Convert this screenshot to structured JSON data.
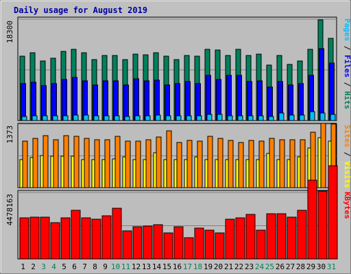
{
  "title": "Daily usage for August 2019",
  "colors": {
    "background": "#c0c0c0",
    "panel": "#bdbdbd",
    "grid": "#808080",
    "hits": "#00805c",
    "files": "#0000ff",
    "pages": "#00c0ff",
    "visits": "#ffff00",
    "sites": "#ff8000",
    "kbytes": "#ff0000",
    "weekend_label": "#00805c",
    "weekday_label": "#000000",
    "title": "#0000a0"
  },
  "chart_data": [
    {
      "type": "bar",
      "panel": "top",
      "ytick": "18300",
      "ymax": 18300,
      "categories": [
        "1",
        "2",
        "3",
        "4",
        "5",
        "6",
        "7",
        "8",
        "9",
        "10",
        "11",
        "12",
        "13",
        "14",
        "15",
        "16",
        "17",
        "18",
        "19",
        "20",
        "21",
        "22",
        "23",
        "24",
        "25",
        "26",
        "27",
        "28",
        "29",
        "30",
        "31"
      ],
      "weekend": [
        3,
        4,
        10,
        11,
        17,
        18,
        24,
        25,
        31
      ],
      "legend": [
        {
          "text": "Pages",
          "color": "#00c0ff"
        },
        {
          "text": " / ",
          "color": "#000000"
        },
        {
          "text": "Files",
          "color": "#0000ff"
        },
        {
          "text": " / ",
          "color": "#000000"
        },
        {
          "text": "Hits",
          "color": "#00805c"
        }
      ],
      "series": [
        {
          "name": "Hits",
          "color": "#00805c",
          "values": [
            11600,
            12200,
            10700,
            11200,
            12500,
            12900,
            12300,
            11000,
            11800,
            11800,
            11000,
            12000,
            11900,
            12200,
            11600,
            11000,
            11800,
            11600,
            12900,
            12700,
            11700,
            12900,
            11700,
            12000,
            10000,
            11800,
            10100,
            10700,
            12800,
            18200,
            14800
          ]
        },
        {
          "name": "Files",
          "color": "#0000ff",
          "values": [
            6700,
            6900,
            6300,
            6700,
            7400,
            7800,
            7200,
            6400,
            7200,
            7200,
            6400,
            7500,
            7200,
            7300,
            6400,
            6700,
            7100,
            6700,
            8100,
            7400,
            8100,
            8200,
            7100,
            7200,
            6000,
            7100,
            6400,
            6700,
            8200,
            13000,
            10400
          ]
        },
        {
          "name": "Pages",
          "color": "#00c0ff",
          "values": [
            800,
            900,
            850,
            850,
            900,
            950,
            950,
            850,
            900,
            850,
            800,
            900,
            900,
            1000,
            850,
            900,
            900,
            850,
            1100,
            1100,
            900,
            900,
            850,
            900,
            800,
            1300,
            1000,
            1000,
            1600,
            1350,
            1100
          ]
        }
      ]
    },
    {
      "type": "bar",
      "panel": "middle",
      "ytick": "1373",
      "ymax": 1373,
      "legend": [
        {
          "text": "Sites",
          "color": "#ff8000"
        },
        {
          "text": " / ",
          "color": "#000000"
        },
        {
          "text": "Visits",
          "color": "#ffff00"
        }
      ],
      "series": [
        {
          "name": "Visits",
          "color": "#ffff00",
          "values": [
            600,
            650,
            700,
            680,
            680,
            680,
            610,
            610,
            610,
            620,
            660,
            600,
            600,
            760,
            610,
            610,
            610,
            660,
            610,
            610,
            610,
            610,
            610,
            610,
            740,
            610,
            610,
            670,
            850,
            1080,
            1000
          ]
        },
        {
          "name": "Sites",
          "color": "#ff8000",
          "values": [
            1000,
            1060,
            1120,
            1030,
            1120,
            1110,
            1060,
            1030,
            1030,
            1100,
            1000,
            1000,
            1030,
            1090,
            1230,
            980,
            1020,
            1000,
            1110,
            1070,
            1020,
            980,
            1020,
            1000,
            1070,
            1040,
            1030,
            1040,
            1200,
            1390,
            1370
          ]
        }
      ]
    },
    {
      "type": "bar",
      "panel": "bottom",
      "ytick": "4478163",
      "ymax": 4478163,
      "legend": [
        {
          "text": "KBytes",
          "color": "#ff0000"
        }
      ],
      "series": [
        {
          "name": "KBytes",
          "color": "#ff0000",
          "values": [
            2750000,
            2800000,
            2800000,
            2450000,
            2750000,
            3300000,
            2750000,
            2700000,
            2900000,
            3400000,
            1900000,
            2150000,
            2200000,
            2300000,
            1750000,
            2170000,
            1450000,
            2100000,
            1950000,
            1750000,
            2700000,
            2750000,
            3000000,
            1950000,
            3050000,
            3050000,
            2800000,
            3300000,
            5300000,
            4550000,
            6300000
          ]
        }
      ]
    }
  ]
}
